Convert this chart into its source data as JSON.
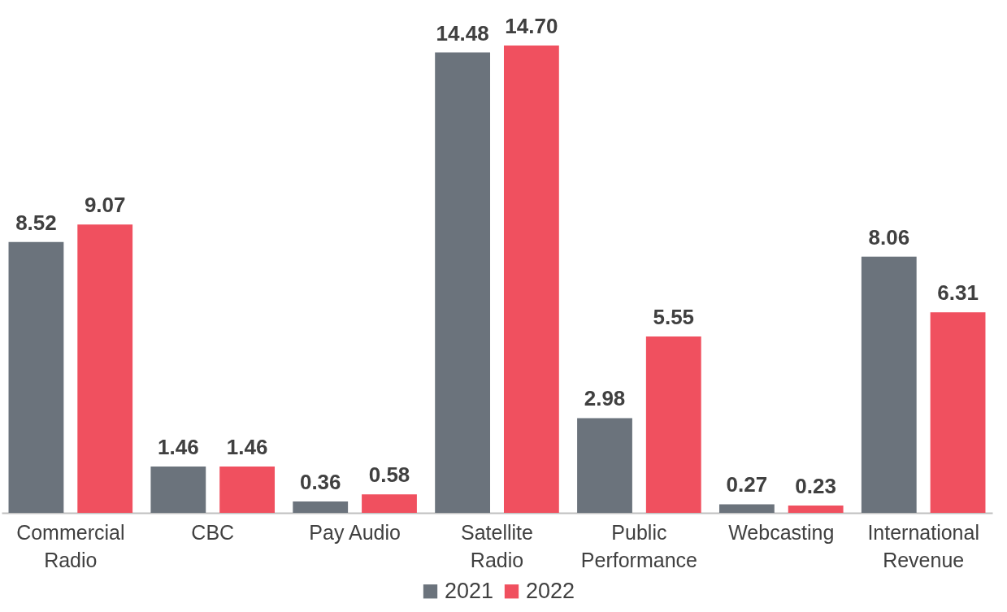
{
  "chart_data": {
    "type": "bar",
    "categories": [
      "Commercial Radio",
      "CBC",
      "Pay Audio",
      "Satellite Radio",
      "Public Performance",
      "Webcasting",
      "International Revenue"
    ],
    "series": [
      {
        "name": "2021",
        "color": "#6b737c",
        "values": [
          8.52,
          1.46,
          0.36,
          14.48,
          2.98,
          0.27,
          8.06
        ],
        "value_labels": [
          "8.52",
          "1.46",
          "0.36",
          "14.48",
          "2.98",
          "0.27",
          "8.06"
        ]
      },
      {
        "name": "2022",
        "color": "#f0505f",
        "values": [
          9.07,
          1.46,
          0.58,
          14.7,
          5.55,
          0.23,
          6.31
        ],
        "value_labels": [
          "9.07",
          "1.46",
          "0.58",
          "14.70",
          "5.55",
          "0.23",
          "6.31"
        ]
      }
    ],
    "legend": "bottom",
    "grid": false
  }
}
